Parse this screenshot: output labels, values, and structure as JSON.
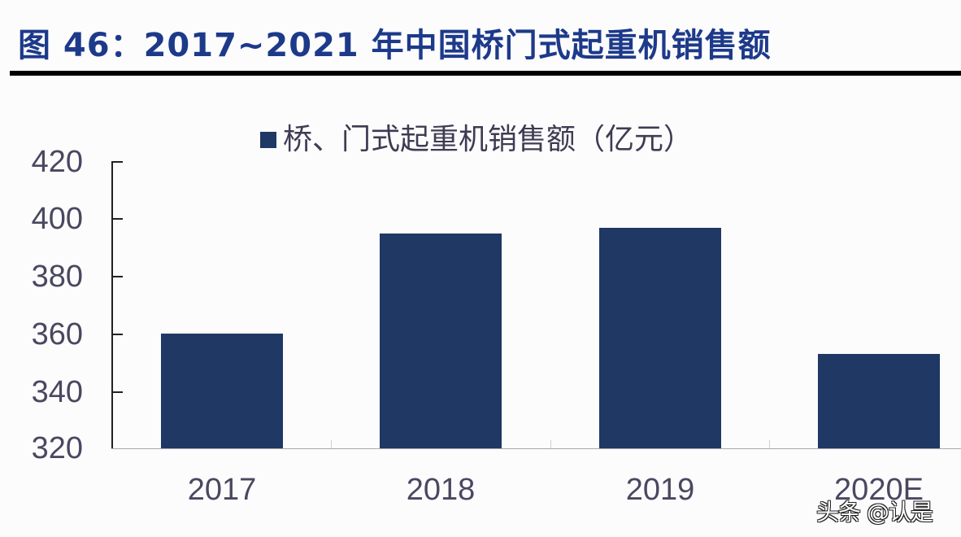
{
  "figure": {
    "title": "图 46：2017~2021 年中国桥门式起重机销售额",
    "watermark": "头条 @认是"
  },
  "colors": {
    "title": "#1d3a8a",
    "bar": "#1f3864",
    "axis_text": "#4a4860"
  },
  "chart_data": {
    "type": "bar",
    "title": "图 46：2017~2021 年中国桥门式起重机销售额",
    "xlabel": "",
    "ylabel": "",
    "categories": [
      "2017",
      "2018",
      "2019",
      "2020E"
    ],
    "series": [
      {
        "name": "桥、门式起重机销售额（亿元）",
        "values": [
          360,
          395,
          397,
          353
        ]
      }
    ],
    "values": [
      360,
      395,
      397,
      353
    ],
    "ylim": [
      320,
      420
    ],
    "yticks": [
      "420",
      "400",
      "380",
      "360",
      "340",
      "320"
    ],
    "legend": {
      "position": "top",
      "entries": [
        "桥、门式起重机销售额（亿元）"
      ]
    },
    "grid": false
  }
}
